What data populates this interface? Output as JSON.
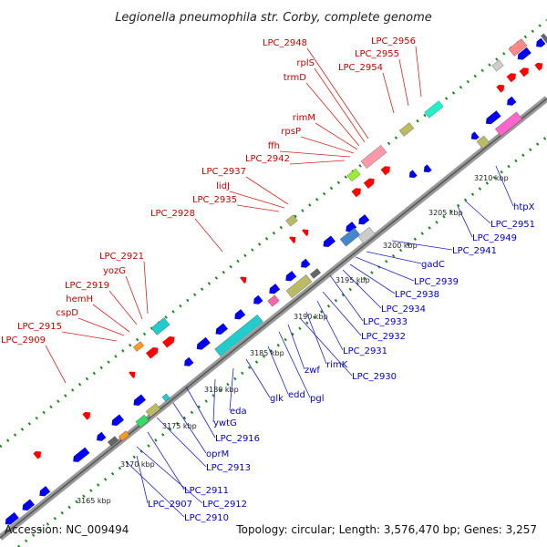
{
  "title": "Legionella pneumophila str. Corby, complete genome",
  "footer": {
    "accession": "Accession: NC_009494",
    "summary": "Topology: circular; Length: 3,576,470 bp; Genes: 3,257"
  },
  "colors": {
    "forward": "#ff0000",
    "reverse": "#0000ee",
    "backbone": "#777777",
    "dots": "#228822"
  },
  "ticks": [
    "3165 kbp",
    "3170 kbp",
    "3175 kbp",
    "3180 kbp",
    "3185 kbp",
    "3190 kbp",
    "3195 kbp",
    "3200 kbp",
    "3205 kbp",
    "3210 kbp"
  ],
  "red_labels": [
    "LPC_2956",
    "LPC_2955",
    "LPC_2954",
    "LPC_2948",
    "rplS",
    "trmD",
    "rimM",
    "rpsP",
    "ffh",
    "LPC_2942",
    "LPC_2937",
    "lidJ",
    "LPC_2935",
    "LPC_2928",
    "LPC_2921",
    "yozG",
    "LPC_2919",
    "hemH",
    "cspD",
    "LPC_2915",
    "LPC_2909"
  ],
  "blue_labels": [
    "htpX",
    "LPC_2951",
    "LPC_2949",
    "LPC_2941",
    "gadC",
    "LPC_2939",
    "LPC_2938",
    "LPC_2934",
    "LPC_2933",
    "LPC_2932",
    "LPC_2931",
    "rimK",
    "LPC_2930",
    "zwf",
    "pgl",
    "edd",
    "glk",
    "eda",
    "ywtG",
    "LPC_2916",
    "oprM",
    "LPC_2913",
    "LPC_2911",
    "LPC_2912",
    "LPC_2907",
    "LPC_2910"
  ]
}
